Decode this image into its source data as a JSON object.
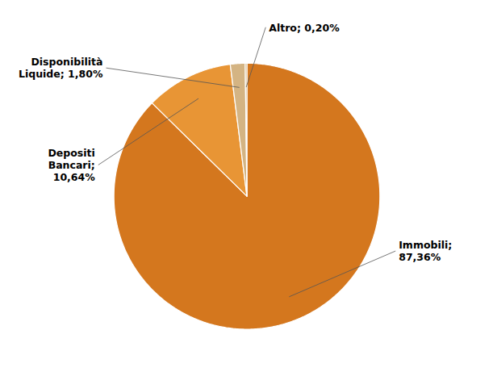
{
  "chart_data": {
    "type": "pie",
    "categories": [
      "Immobili;\n87,36%",
      "Depositi\nBancari;\n10,64%",
      "Disponibilità\nLiquide; 1,80%",
      "Altro; 0,20%"
    ],
    "values": [
      87.36,
      10.64,
      1.8,
      0.2
    ],
    "colors": [
      "#D4771E",
      "#E89535",
      "#D4B483",
      "#C8A060"
    ]
  }
}
